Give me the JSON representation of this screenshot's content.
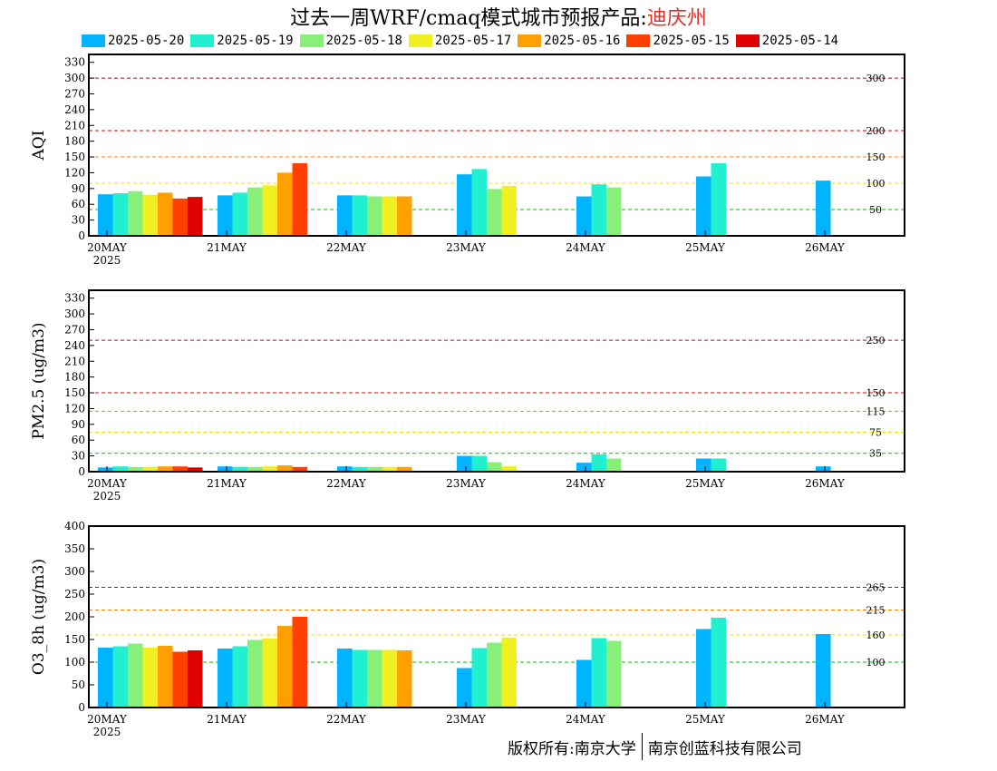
{
  "title": {
    "main": "过去一周WRF/cmaq模式城市预报产品:",
    "city": "迪庆州"
  },
  "legend": [
    {
      "label": "2025-05-20",
      "color": "#00b4ff"
    },
    {
      "label": "2025-05-19",
      "color": "#20f0d0"
    },
    {
      "label": "2025-05-18",
      "color": "#88f078"
    },
    {
      "label": "2025-05-17",
      "color": "#f0f020"
    },
    {
      "label": "2025-05-16",
      "color": "#ffa000"
    },
    {
      "label": "2025-05-15",
      "color": "#ff4000"
    },
    {
      "label": "2025-05-14",
      "color": "#e00000"
    }
  ],
  "footer": {
    "left": "版权所有:南京大学",
    "right": "南京创蓝科技有限公司"
  },
  "chart_data": [
    {
      "type": "bar",
      "ylabel": "AQI",
      "ylim": [
        0,
        345
      ],
      "yticks": [
        0,
        30,
        60,
        90,
        120,
        150,
        180,
        210,
        240,
        270,
        300,
        330
      ],
      "categories": [
        "20MAY",
        "21MAY",
        "22MAY",
        "23MAY",
        "24MAY",
        "25MAY",
        "26MAY"
      ],
      "year_label": "2025",
      "reference_lines": [
        {
          "value": 300,
          "label": "300",
          "color": "#b0004a"
        },
        {
          "value": 200,
          "label": "200",
          "color": "#e00000"
        },
        {
          "value": 150,
          "label": "150",
          "color": "#ff8000"
        },
        {
          "value": 100,
          "label": "100",
          "color": "#f0e000"
        },
        {
          "value": 50,
          "label": "50",
          "color": "#00c000"
        }
      ],
      "series": [
        {
          "name": "2025-05-20",
          "values": [
            79,
            77,
            77,
            117,
            75,
            113,
            105
          ]
        },
        {
          "name": "2025-05-19",
          "values": [
            81,
            82,
            77,
            127,
            98,
            138,
            null
          ]
        },
        {
          "name": "2025-05-18",
          "values": [
            85,
            92,
            75,
            89,
            92,
            null,
            null
          ]
        },
        {
          "name": "2025-05-17",
          "values": [
            78,
            96,
            75,
            95,
            null,
            null,
            null
          ]
        },
        {
          "name": "2025-05-16",
          "values": [
            82,
            120,
            75,
            null,
            null,
            null,
            null
          ]
        },
        {
          "name": "2025-05-15",
          "values": [
            71,
            138,
            null,
            null,
            null,
            null,
            null
          ]
        },
        {
          "name": "2025-05-14",
          "values": [
            74,
            null,
            null,
            null,
            null,
            null,
            null
          ]
        }
      ]
    },
    {
      "type": "bar",
      "ylabel": "PM2.5 (ug/m3)",
      "ylim": [
        0,
        345
      ],
      "yticks": [
        0,
        30,
        60,
        90,
        120,
        150,
        180,
        210,
        240,
        270,
        300,
        330
      ],
      "categories": [
        "20MAY",
        "21MAY",
        "22MAY",
        "23MAY",
        "24MAY",
        "25MAY",
        "26MAY"
      ],
      "year_label": "2025",
      "reference_lines": [
        {
          "value": 250,
          "label": "250",
          "color": "#b0004a"
        },
        {
          "value": 150,
          "label": "150",
          "color": "#e00000"
        },
        {
          "value": 115,
          "label": "115",
          "color": "#ff8000"
        },
        {
          "value": 75,
          "label": "75",
          "color": "#f0e000"
        },
        {
          "value": 35,
          "label": "35",
          "color": "#00c000"
        }
      ],
      "series": [
        {
          "name": "2025-05-20",
          "values": [
            8,
            10,
            10,
            30,
            17,
            25,
            10
          ]
        },
        {
          "name": "2025-05-19",
          "values": [
            10,
            9,
            9,
            30,
            33,
            25,
            null
          ]
        },
        {
          "name": "2025-05-18",
          "values": [
            9,
            9,
            9,
            18,
            25,
            null,
            null
          ]
        },
        {
          "name": "2025-05-17",
          "values": [
            9,
            10,
            9,
            10,
            null,
            null,
            null
          ]
        },
        {
          "name": "2025-05-16",
          "values": [
            10,
            12,
            9,
            null,
            null,
            null,
            null
          ]
        },
        {
          "name": "2025-05-15",
          "values": [
            10,
            9,
            null,
            null,
            null,
            null,
            null
          ]
        },
        {
          "name": "2025-05-14",
          "values": [
            8,
            null,
            null,
            null,
            null,
            null,
            null
          ]
        }
      ]
    },
    {
      "type": "bar",
      "ylabel": "O3_8h (ug/m3)",
      "ylim": [
        0,
        400
      ],
      "yticks": [
        0,
        50,
        100,
        150,
        200,
        250,
        300,
        350,
        400
      ],
      "categories": [
        "20MAY",
        "21MAY",
        "22MAY",
        "23MAY",
        "24MAY",
        "25MAY",
        "26MAY"
      ],
      "year_label": "2025",
      "reference_lines": [
        {
          "value": 265,
          "label": "265",
          "color": "#e00000"
        },
        {
          "value": 215,
          "label": "215",
          "color": "#ff8000"
        },
        {
          "value": 160,
          "label": "160",
          "color": "#f0e000"
        },
        {
          "value": 100,
          "label": "100",
          "color": "#00c000"
        }
      ],
      "series": [
        {
          "name": "2025-05-20",
          "values": [
            132,
            130,
            130,
            87,
            105,
            173,
            162
          ]
        },
        {
          "name": "2025-05-19",
          "values": [
            135,
            135,
            127,
            131,
            153,
            198,
            null
          ]
        },
        {
          "name": "2025-05-18",
          "values": [
            141,
            149,
            127,
            143,
            147,
            null,
            null
          ]
        },
        {
          "name": "2025-05-17",
          "values": [
            132,
            152,
            127,
            154,
            null,
            null,
            null
          ]
        },
        {
          "name": "2025-05-16",
          "values": [
            136,
            180,
            126,
            null,
            null,
            null,
            null
          ]
        },
        {
          "name": "2025-05-15",
          "values": [
            123,
            200,
            null,
            null,
            null,
            null,
            null
          ]
        },
        {
          "name": "2025-05-14",
          "values": [
            126,
            null,
            null,
            null,
            null,
            null,
            null
          ]
        }
      ]
    }
  ]
}
